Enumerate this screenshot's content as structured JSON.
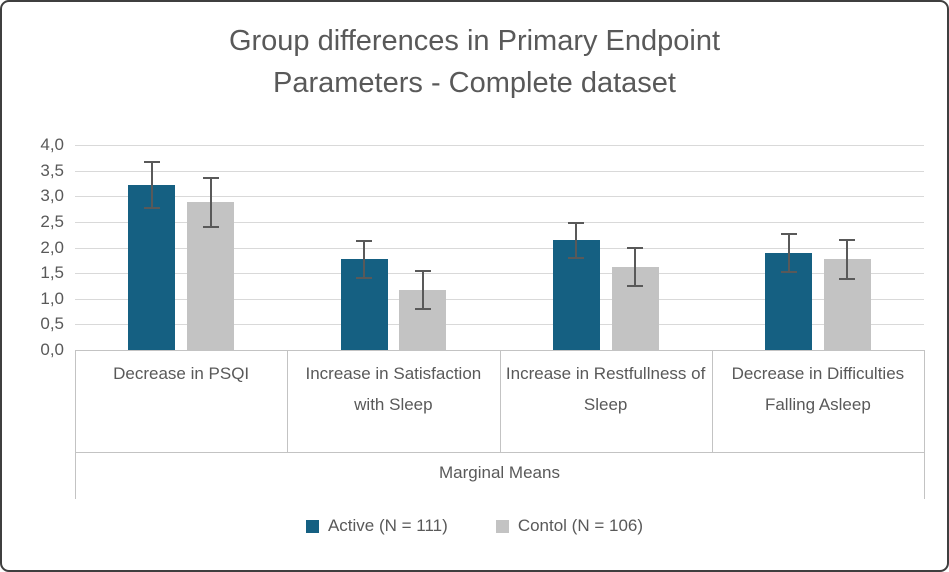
{
  "frame": {
    "background": "#ffffff",
    "border_color": "#3f3f3f"
  },
  "colors": {
    "text": "#595959",
    "gridline": "#d9d9d9",
    "axis_line": "#c3c3c3",
    "error_bar": "#595959",
    "active_series": "#156082",
    "control_series": "#c3c3c3"
  },
  "chart_data": {
    "type": "bar",
    "title": "Group differences in Primary Endpoint Parameters - Complete dataset",
    "title_lines": [
      "Group differences in Primary Endpoint",
      "Parameters - Complete dataset"
    ],
    "categories": [
      "Decrease in PSQI",
      "Increase in Satisfaction with Sleep",
      "Increase in Restfullness of Sleep",
      "Decrease in Difficulties Falling Asleep"
    ],
    "series": [
      {
        "name": "Active (N = 111)",
        "color": "#156082",
        "values": [
          3.22,
          1.77,
          2.14,
          1.9
        ],
        "errors": [
          0.47,
          0.38,
          0.36,
          0.39
        ]
      },
      {
        "name": "Contol (N = 106)",
        "color": "#c3c3c3",
        "values": [
          2.88,
          1.17,
          1.62,
          1.77
        ],
        "errors": [
          0.49,
          0.39,
          0.39,
          0.4
        ]
      }
    ],
    "xlabel": "Marginal Means",
    "ylabel": "",
    "ylim": [
      0,
      4
    ],
    "ytick_step": 0.5,
    "ytick_labels": [
      "0,0",
      "0,5",
      "1,0",
      "1,5",
      "2,0",
      "2,5",
      "3,0",
      "3,5",
      "4,0"
    ],
    "grid": true,
    "error_bars": true,
    "legend_position": "bottom"
  }
}
